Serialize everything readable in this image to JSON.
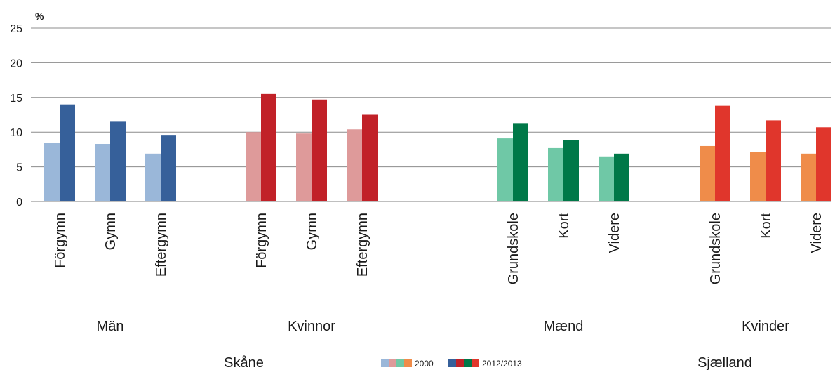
{
  "chart_data": {
    "type": "bar",
    "ylabel": "%",
    "ylim": [
      0,
      25
    ],
    "yticks": [
      0,
      5,
      10,
      15,
      20,
      25
    ],
    "grid": true,
    "legend_position": "bottom-center",
    "legend": [
      {
        "label": "2000",
        "colors": [
          "#9ab7d9",
          "#de9a9a",
          "#6fc8a6",
          "#ef8c4a"
        ]
      },
      {
        "label": "2012/2013",
        "colors": [
          "#36609a",
          "#c12128",
          "#007848",
          "#e0362c"
        ]
      }
    ],
    "regions": [
      "Skåne",
      "Sjælland"
    ],
    "groups": [
      {
        "name": "Män",
        "region": "Skåne",
        "color_2000": "#9ab7d9",
        "color_2012": "#36609a",
        "categories": [
          "Förgymn",
          "Gymn",
          "Eftergymn"
        ],
        "values_2000": [
          8.4,
          8.3,
          6.9
        ],
        "values_2012": [
          14.0,
          11.5,
          9.6
        ]
      },
      {
        "name": "Kvinnor",
        "region": "Skåne",
        "color_2000": "#de9a9a",
        "color_2012": "#c12128",
        "categories": [
          "Förgymn",
          "Gymn",
          "Eftergymn"
        ],
        "values_2000": [
          10.0,
          9.8,
          10.4
        ],
        "values_2012": [
          15.5,
          14.7,
          12.5
        ]
      },
      {
        "name": "Mænd",
        "region": "Sjælland",
        "color_2000": "#6fc8a6",
        "color_2012": "#007848",
        "categories": [
          "Grundskole",
          "Kort",
          "Videre"
        ],
        "values_2000": [
          9.1,
          7.7,
          6.5
        ],
        "values_2012": [
          11.3,
          8.9,
          6.9
        ]
      },
      {
        "name": "Kvinder",
        "region": "Sjælland",
        "color_2000": "#ef8c4a",
        "color_2012": "#e0362c",
        "categories": [
          "Grundskole",
          "Kort",
          "Videre"
        ],
        "values_2000": [
          8.0,
          7.1,
          6.9
        ],
        "values_2012": [
          13.8,
          11.7,
          10.7
        ]
      }
    ]
  }
}
